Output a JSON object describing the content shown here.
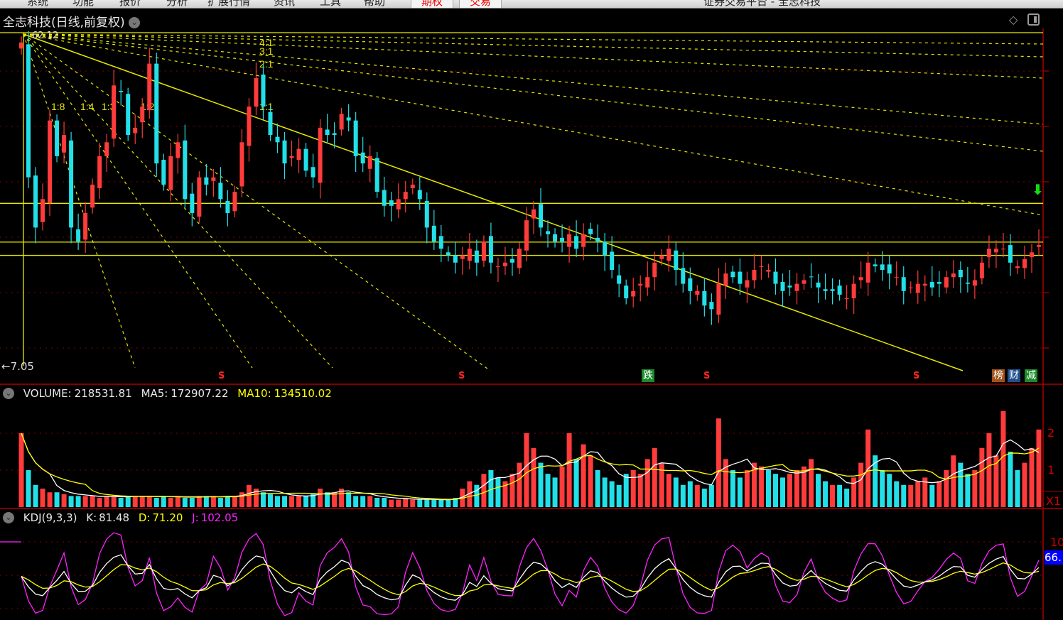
{
  "menubar": {
    "items": [
      "系统",
      "功能",
      "报价",
      "分析",
      "扩展行情",
      "资讯",
      "工具",
      "帮助"
    ],
    "red_items": [
      "期权",
      "交易"
    ],
    "window_title": "证券交易平台 - 全志科技"
  },
  "header": {
    "title": "全志科技(日线,前复权)"
  },
  "price_panel": {
    "high_label": "62.12",
    "low_label": "←7.05",
    "gann_labels": [
      "4:1",
      "3:1",
      "2:1",
      "1:1",
      "1:2",
      "1:3",
      "1:4",
      "1:8"
    ],
    "signals": [
      "S",
      "S",
      "S",
      "S"
    ],
    "fall_signal": "跌",
    "badges": [
      "榜",
      "财",
      "减"
    ],
    "badge_colors": [
      "#a0521a",
      "#1e4f8c",
      "#1a8a2a"
    ]
  },
  "volume_panel": {
    "name": "VOLUME:",
    "value": "218531.81",
    "ma5_label": "MA5:",
    "ma5": "172907.22",
    "ma10_label": "MA10:",
    "ma10": "134510.02",
    "axis": [
      "2",
      "1"
    ],
    "unit": "X1"
  },
  "kdj_panel": {
    "name": "KDJ(9,3,3)",
    "k_label": "K:",
    "k": "81.48",
    "d_label": "D:",
    "d": "71.20",
    "j_label": "J:",
    "j": "102.05",
    "axis": [
      "10"
    ],
    "current_tag": "66."
  },
  "colors": {
    "up": "#ff3b3b",
    "down": "#22e0e8",
    "ma5": "#ffffff",
    "ma10": "#ffff00",
    "k": "#ffffff",
    "d": "#ffff00",
    "j": "#ff22ff",
    "grid": "#8a0000",
    "line": "#e8e800"
  },
  "chart_data": {
    "type": "candlestick",
    "ylim": [
      7.05,
      62.12
    ],
    "close": [
      60.5,
      38.2,
      29.9,
      34.6,
      47.6,
      41.7,
      45.2,
      29.9,
      27.6,
      32.3,
      37.0,
      41.7,
      44.0,
      53.4,
      52.3,
      45.2,
      46.4,
      49.9,
      57.0,
      40.5,
      37.0,
      41.7,
      44.0,
      34.6,
      32.3,
      38.2,
      37.0,
      38.2,
      34.6,
      32.3,
      35.8,
      44.0,
      49.9,
      54.6,
      49.9,
      45.2,
      44.0,
      40.5,
      41.7,
      42.9,
      39.3,
      38.2,
      46.4,
      45.2,
      45.2,
      48.7,
      47.6,
      41.7,
      40.5,
      41.7,
      35.8,
      33.5,
      33.5,
      34.6,
      35.8,
      37.0,
      34.6,
      29.9,
      27.6,
      26.4,
      25.3,
      24.1,
      25.3,
      26.4,
      24.1,
      27.6,
      24.1,
      23.5,
      24.1,
      24.1,
      26.4,
      31.1,
      32.9,
      29.9,
      28.8,
      27.6,
      27.6,
      28.8,
      26.4,
      28.8,
      28.8,
      27.6,
      25.3,
      22.9,
      20.6,
      18.2,
      19.4,
      20.6,
      21.7,
      24.1,
      25.3,
      26.4,
      22.9,
      20.6,
      19.4,
      19.4,
      17.0,
      16.4,
      20.6,
      22.3,
      21.7,
      20.6,
      21.2,
      22.9,
      23.5,
      22.9,
      20.6,
      19.4,
      20.0,
      20.6,
      21.2,
      21.7,
      20.0,
      19.4,
      19.4,
      18.8,
      18.2,
      20.6,
      21.7,
      24.1,
      23.5,
      22.9,
      22.3,
      21.7,
      19.4,
      20.0,
      20.6,
      20.6,
      20.0,
      20.6,
      21.7,
      22.3,
      21.7,
      20.6,
      21.2,
      24.1,
      26.4,
      26.4,
      26.4,
      24.1,
      23.5,
      24.7,
      25.8,
      27.0
    ],
    "volume": [
      2.0,
      1.0,
      0.6,
      0.5,
      0.4,
      0.4,
      0.35,
      0.3,
      0.3,
      0.3,
      0.3,
      0.25,
      0.3,
      0.3,
      0.25,
      0.3,
      0.3,
      0.3,
      0.3,
      0.25,
      0.3,
      0.25,
      0.3,
      0.25,
      0.25,
      0.3,
      0.3,
      0.3,
      0.25,
      0.3,
      0.3,
      0.4,
      0.6,
      0.5,
      0.4,
      0.35,
      0.3,
      0.3,
      0.3,
      0.3,
      0.3,
      0.35,
      0.5,
      0.4,
      0.4,
      0.5,
      0.4,
      0.3,
      0.3,
      0.3,
      0.25,
      0.25,
      0.2,
      0.2,
      0.25,
      0.2,
      0.2,
      0.2,
      0.2,
      0.2,
      0.2,
      0.25,
      0.5,
      0.7,
      0.6,
      0.9,
      1.0,
      0.8,
      0.7,
      0.9,
      1.2,
      2.0,
      1.6,
      1.2,
      0.9,
      0.8,
      1.1,
      2.0,
      1.3,
      1.7,
      1.4,
      1.0,
      0.8,
      0.7,
      0.6,
      0.9,
      1.0,
      0.9,
      1.3,
      1.6,
      1.2,
      0.9,
      0.8,
      0.6,
      0.7,
      0.6,
      0.5,
      0.6,
      2.4,
      1.3,
      1.0,
      0.8,
      1.0,
      1.2,
      1.1,
      1.0,
      0.9,
      0.8,
      0.9,
      1.0,
      1.1,
      1.3,
      0.9,
      0.7,
      0.6,
      0.6,
      0.5,
      0.8,
      1.2,
      2.1,
      1.4,
      1.0,
      0.9,
      0.7,
      0.6,
      0.6,
      0.7,
      0.8,
      0.6,
      0.7,
      1.0,
      1.4,
      1.2,
      0.9,
      1.0,
      1.6,
      2.0,
      1.4,
      2.6,
      1.5,
      1.0,
      1.2,
      1.6,
      2.1
    ],
    "horizontal_lines": [
      62.12,
      33.9,
      27.5,
      25.3
    ],
    "indicators": [
      "VOLUME",
      "MA5",
      "MA10",
      "KDJ(9,3,3)"
    ]
  }
}
